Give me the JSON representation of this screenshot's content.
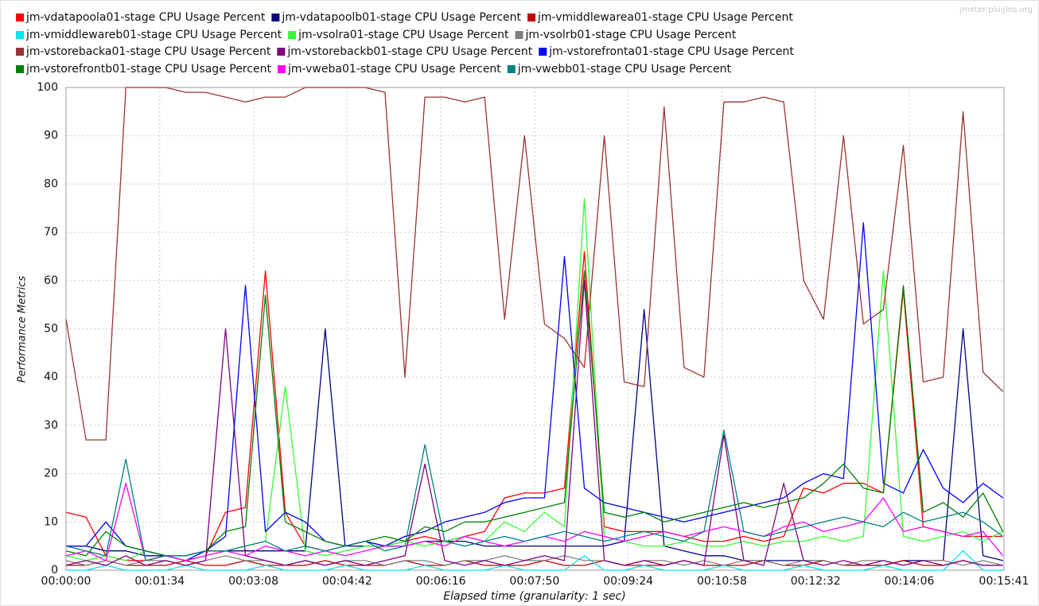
{
  "chart_data": {
    "type": "line",
    "watermark": "jmeter-plugins.org",
    "xlabel": "Elapsed time (granularity: 1 sec)",
    "ylabel": "Performance Metrics",
    "grid": true,
    "legend": "top",
    "xlim": [
      0,
      941
    ],
    "ylim": [
      0,
      100
    ],
    "yticks": [
      0,
      10,
      20,
      30,
      40,
      50,
      60,
      70,
      80,
      90,
      100
    ],
    "xticks": [
      {
        "value": 0,
        "label": "00:00:00"
      },
      {
        "value": 94,
        "label": "00:01:34"
      },
      {
        "value": 188,
        "label": "00:03:08"
      },
      {
        "value": 282,
        "label": "00:04:42"
      },
      {
        "value": 376,
        "label": "00:06:16"
      },
      {
        "value": 470,
        "label": "00:07:50"
      },
      {
        "value": 564,
        "label": "00:09:24"
      },
      {
        "value": 658,
        "label": "00:10:58"
      },
      {
        "value": 752,
        "label": "00:12:32"
      },
      {
        "value": 846,
        "label": "00:14:06"
      },
      {
        "value": 941,
        "label": "00:15:41"
      }
    ],
    "x": [
      0,
      20,
      40,
      60,
      80,
      100,
      120,
      140,
      160,
      180,
      200,
      220,
      240,
      260,
      280,
      300,
      320,
      340,
      360,
      380,
      400,
      420,
      440,
      460,
      480,
      500,
      520,
      540,
      560,
      580,
      600,
      620,
      640,
      660,
      680,
      700,
      720,
      740,
      760,
      780,
      800,
      820,
      840,
      860,
      880,
      900,
      920,
      940
    ],
    "series": [
      {
        "name": "jm-vdatapoola01-stage CPU Usage Percent",
        "color": "#ff0000",
        "values": [
          12,
          11,
          3,
          2,
          2,
          3,
          2,
          3,
          12,
          13,
          62,
          12,
          5,
          4,
          5,
          6,
          5,
          6,
          7,
          6,
          7,
          8,
          15,
          16,
          16,
          17,
          66,
          9,
          8,
          8,
          8,
          7,
          6,
          6,
          7,
          6,
          7,
          17,
          16,
          18,
          18,
          16,
          58,
          9,
          8,
          7,
          7,
          7
        ]
      },
      {
        "name": "jm-vdatapoolb01-stage CPU Usage Percent",
        "color": "#000080",
        "values": [
          5,
          5,
          4,
          4,
          3,
          3,
          3,
          4,
          4,
          4,
          4,
          4,
          4,
          50,
          5,
          5,
          5,
          5,
          6,
          6,
          6,
          5,
          5,
          5,
          5,
          5,
          5,
          5,
          6,
          54,
          5,
          4,
          3,
          3,
          2,
          2,
          2,
          2,
          2,
          1,
          1,
          1,
          2,
          2,
          2,
          50,
          3,
          2
        ]
      },
      {
        "name": "jm-vmiddlewarea01-stage CPU Usage Percent",
        "color": "#c00000",
        "values": [
          1,
          1,
          2,
          1,
          1,
          1,
          2,
          1,
          1,
          2,
          1,
          1,
          1,
          2,
          1,
          1,
          1,
          2,
          1,
          1,
          2,
          1,
          1,
          1,
          2,
          1,
          1,
          2,
          1,
          1,
          1,
          2,
          1,
          1,
          1,
          2,
          1,
          1,
          2,
          1,
          1,
          1,
          2,
          1,
          1,
          2,
          1,
          1
        ]
      },
      {
        "name": "jm-vmiddlewareb01-stage CPU Usage Percent",
        "color": "#00e5ee",
        "values": [
          0,
          0,
          1,
          0,
          0,
          0,
          1,
          0,
          0,
          0,
          1,
          0,
          0,
          0,
          1,
          0,
          0,
          0,
          1,
          0,
          0,
          0,
          1,
          0,
          0,
          0,
          3,
          0,
          0,
          1,
          0,
          0,
          0,
          1,
          0,
          0,
          0,
          1,
          0,
          0,
          0,
          1,
          0,
          0,
          0,
          4,
          0,
          0
        ]
      },
      {
        "name": "jm-vsolra01-stage CPU Usage Percent",
        "color": "#33ff33",
        "values": [
          3,
          2,
          3,
          2,
          4,
          3,
          2,
          3,
          4,
          5,
          6,
          38,
          4,
          3,
          4,
          5,
          5,
          6,
          5,
          6,
          7,
          6,
          10,
          8,
          12,
          9,
          77,
          7,
          6,
          5,
          5,
          6,
          5,
          5,
          6,
          5,
          6,
          6,
          7,
          6,
          7,
          62,
          7,
          6,
          7,
          8,
          6,
          8
        ]
      },
      {
        "name": "jm-vsolrb01-stage CPU Usage Percent",
        "color": "#808080",
        "values": [
          2,
          1,
          2,
          1,
          2,
          2,
          1,
          2,
          3,
          2,
          2,
          1,
          2,
          1,
          2,
          2,
          1,
          2,
          2,
          1,
          2,
          2,
          3,
          2,
          2,
          3,
          2,
          2,
          1,
          2,
          2,
          1,
          2,
          1,
          2,
          2,
          1,
          2,
          2,
          1,
          2,
          2,
          1,
          2,
          2,
          1,
          2,
          1
        ]
      },
      {
        "name": "jm-vstorebacka01-stage CPU Usage Percent",
        "color": "#993333",
        "values": [
          52,
          27,
          27,
          100,
          100,
          100,
          99,
          99,
          98,
          97,
          98,
          98,
          100,
          100,
          100,
          100,
          99,
          40,
          98,
          98,
          97,
          98,
          52,
          90,
          51,
          48,
          42,
          90,
          39,
          38,
          96,
          42,
          40,
          97,
          97,
          98,
          97,
          60,
          52,
          90,
          51,
          54,
          88,
          39,
          40,
          95,
          41,
          37
        ]
      },
      {
        "name": "jm-vstorebackb01-stage CPU Usage Percent",
        "color": "#800080",
        "values": [
          1,
          2,
          1,
          3,
          1,
          2,
          1,
          2,
          50,
          3,
          2,
          1,
          2,
          1,
          2,
          1,
          2,
          3,
          22,
          2,
          1,
          2,
          1,
          2,
          3,
          2,
          60,
          2,
          1,
          2,
          1,
          2,
          1,
          28,
          2,
          1,
          18,
          2,
          1,
          2,
          1,
          2,
          1,
          2,
          1,
          2,
          1,
          1
        ]
      },
      {
        "name": "jm-vstorefronta01-stage CPU Usage Percent",
        "color": "#0000ff",
        "values": [
          5,
          5,
          10,
          5,
          4,
          3,
          2,
          4,
          7,
          59,
          8,
          12,
          10,
          6,
          5,
          6,
          5,
          7,
          8,
          10,
          11,
          12,
          14,
          15,
          15,
          65,
          17,
          14,
          13,
          12,
          11,
          10,
          11,
          12,
          13,
          14,
          15,
          18,
          20,
          19,
          72,
          18,
          16,
          25,
          17,
          14,
          18,
          15
        ]
      },
      {
        "name": "jm-vstorefrontb01-stage CPU Usage Percent",
        "color": "#008000",
        "values": [
          4,
          3,
          8,
          5,
          4,
          3,
          3,
          4,
          8,
          9,
          57,
          10,
          8,
          6,
          5,
          6,
          7,
          6,
          9,
          8,
          10,
          10,
          11,
          12,
          13,
          14,
          62,
          12,
          11,
          12,
          10,
          11,
          12,
          13,
          14,
          13,
          14,
          15,
          18,
          22,
          17,
          16,
          59,
          12,
          14,
          11,
          16,
          8
        ]
      },
      {
        "name": "jm-vweba01-stage CPU Usage Percent",
        "color": "#ff00ff",
        "values": [
          3,
          4,
          2,
          18,
          2,
          3,
          2,
          3,
          4,
          3,
          5,
          4,
          3,
          4,
          3,
          4,
          5,
          5,
          6,
          5,
          7,
          6,
          5,
          6,
          7,
          6,
          8,
          7,
          6,
          7,
          8,
          7,
          8,
          9,
          8,
          7,
          9,
          10,
          8,
          9,
          10,
          15,
          8,
          9,
          8,
          7,
          8,
          3
        ]
      },
      {
        "name": "jm-vwebb01-stage CPU Usage Percent",
        "color": "#008080",
        "values": [
          5,
          4,
          3,
          23,
          2,
          3,
          3,
          4,
          4,
          5,
          6,
          4,
          5,
          4,
          5,
          6,
          4,
          5,
          26,
          6,
          5,
          6,
          7,
          6,
          7,
          8,
          7,
          6,
          7,
          8,
          7,
          6,
          8,
          29,
          8,
          7,
          8,
          9,
          10,
          11,
          10,
          9,
          12,
          10,
          11,
          12,
          10,
          7
        ]
      }
    ]
  }
}
